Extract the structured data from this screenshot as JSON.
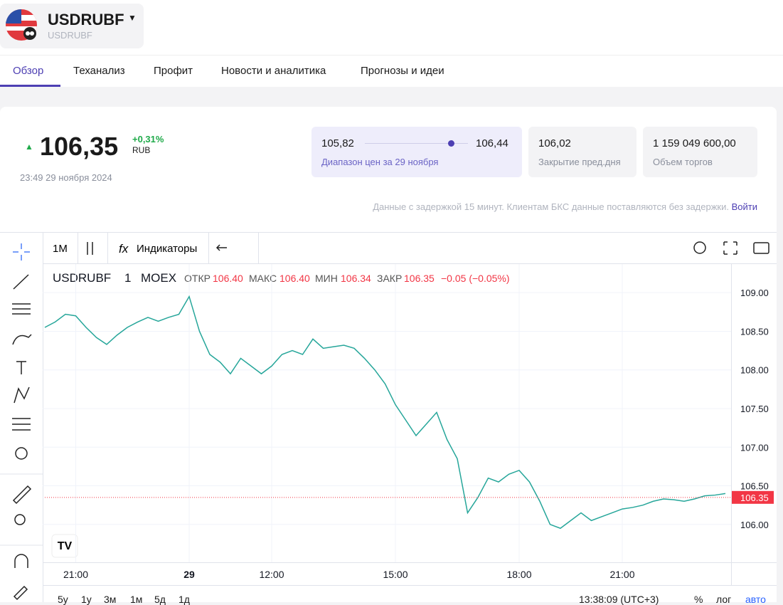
{
  "header": {
    "ticker": "USDRUBF",
    "subtitle": "USDRUBF"
  },
  "tabs": [
    "Обзор",
    "Теханализ",
    "Профит",
    "Новости и аналитика",
    "Прогнозы и идеи"
  ],
  "quote": {
    "price": "106,35",
    "change": "+0,31%",
    "currency": "RUB",
    "time": "23:49 29 ноября 2024"
  },
  "stats": {
    "range_low": "105,82",
    "range_high": "106,44",
    "range_label": "Диапазон цен за 29 ноября",
    "prev_close": "106,02",
    "prev_close_label": "Закрытие пред.дня",
    "volume": "1 159 049 600,00",
    "volume_label": "Объем торгов"
  },
  "notice": {
    "text": "Данные с задержкой 15 минут. Клиентам БКС данные поставляются без задержки.",
    "link": "Войти"
  },
  "toolbar": {
    "interval": "1M",
    "indicators": "Индикаторы"
  },
  "legend": {
    "symbol": "USDRUBF",
    "interval": "1",
    "exchange": "MOEX",
    "open_label": "ОТКР",
    "open": "106.40",
    "high_label": "МАКС",
    "high": "106.40",
    "low_label": "МИН",
    "low": "106.34",
    "close_label": "ЗАКР",
    "close": "106.35",
    "change": "−0.05 (−0.05%)"
  },
  "bottom": {
    "ranges": [
      "5у",
      "1у",
      "3м",
      "1м",
      "5д",
      "1д"
    ],
    "clock": "13:38:09 (UTC+3)",
    "percent": "%",
    "log": "лог",
    "auto": "авто"
  },
  "chart_data": {
    "type": "line",
    "color": "#26a69a",
    "last_value": 106.35,
    "last_color": "#f23645",
    "categories": [
      null,
      null,
      null,
      "21:00",
      null,
      null,
      null,
      null,
      null,
      null,
      null,
      null,
      null,
      null,
      "29",
      null,
      null,
      null,
      null,
      null,
      null,
      null,
      "12:00",
      null,
      null,
      null,
      null,
      null,
      null,
      null,
      null,
      null,
      null,
      null,
      "15:00",
      null,
      null,
      null,
      null,
      null,
      null,
      null,
      null,
      null,
      null,
      null,
      "18:00",
      null,
      null,
      null,
      null,
      null,
      null,
      null,
      null,
      null,
      "21:00",
      null,
      null,
      null,
      null,
      null,
      null,
      null,
      null,
      null,
      null
    ],
    "values": [
      108.55,
      108.62,
      108.72,
      108.7,
      108.55,
      108.42,
      108.33,
      108.45,
      108.55,
      108.62,
      108.68,
      108.63,
      108.68,
      108.72,
      108.95,
      108.5,
      108.2,
      108.1,
      107.95,
      108.15,
      108.05,
      107.95,
      108.05,
      108.2,
      108.25,
      108.2,
      108.4,
      108.28,
      108.3,
      108.32,
      108.28,
      108.15,
      108.0,
      107.82,
      107.55,
      107.35,
      107.15,
      107.3,
      107.45,
      107.1,
      106.85,
      106.15,
      106.35,
      106.6,
      106.55,
      106.65,
      106.7,
      106.55,
      106.3,
      106.0,
      105.95,
      106.05,
      106.15,
      106.05,
      106.1,
      106.15,
      106.2,
      106.22,
      106.25,
      106.3,
      106.33,
      106.32,
      106.3,
      106.33,
      106.37,
      106.38,
      106.4
    ],
    "ylim": [
      105.51,
      109.37
    ],
    "yticks": [
      {
        "value": 106,
        "label": "106.00"
      },
      {
        "value": 106.5,
        "label": "106.50"
      },
      {
        "value": 107,
        "label": "107.00"
      },
      {
        "value": 107.5,
        "label": "107.50"
      },
      {
        "value": 108,
        "label": "108.00"
      },
      {
        "value": 108.5,
        "label": "108.50"
      },
      {
        "value": 109,
        "label": "109.00"
      }
    ],
    "grid": true
  }
}
